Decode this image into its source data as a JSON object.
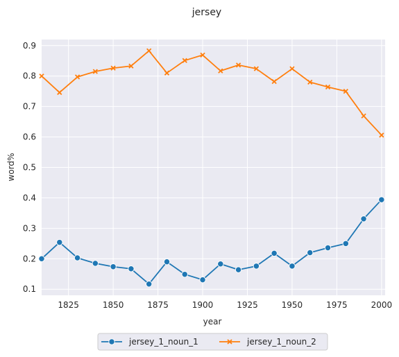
{
  "chart_data": {
    "type": "line",
    "title": "jersey",
    "xlabel": "year",
    "ylabel": "word%",
    "xlim": [
      1810,
      2002
    ],
    "ylim": [
      0.08,
      0.92
    ],
    "xticks": [
      1825,
      1850,
      1875,
      1900,
      1925,
      1950,
      1975,
      2000
    ],
    "yticks": [
      0.1,
      0.2,
      0.3,
      0.4,
      0.5,
      0.6,
      0.7,
      0.8,
      0.9
    ],
    "grid": true,
    "legend_position": "bottom-center",
    "x": [
      1810,
      1820,
      1830,
      1840,
      1850,
      1860,
      1870,
      1880,
      1890,
      1900,
      1910,
      1920,
      1930,
      1940,
      1950,
      1960,
      1970,
      1980,
      1990,
      2000
    ],
    "series": [
      {
        "name": "jersey_1_noun_1",
        "color": "#1f77b4",
        "marker": "circle",
        "values": [
          0.2,
          0.254,
          0.203,
          0.185,
          0.174,
          0.167,
          0.117,
          0.19,
          0.149,
          0.131,
          0.183,
          0.164,
          0.176,
          0.218,
          0.176,
          0.22,
          0.236,
          0.25,
          0.331,
          0.394
        ]
      },
      {
        "name": "jersey_1_noun_2",
        "color": "#ff7f0e",
        "marker": "x",
        "values": [
          0.8,
          0.746,
          0.797,
          0.815,
          0.826,
          0.833,
          0.883,
          0.81,
          0.851,
          0.869,
          0.817,
          0.836,
          0.824,
          0.782,
          0.824,
          0.78,
          0.764,
          0.75,
          0.669,
          0.606
        ]
      }
    ]
  }
}
